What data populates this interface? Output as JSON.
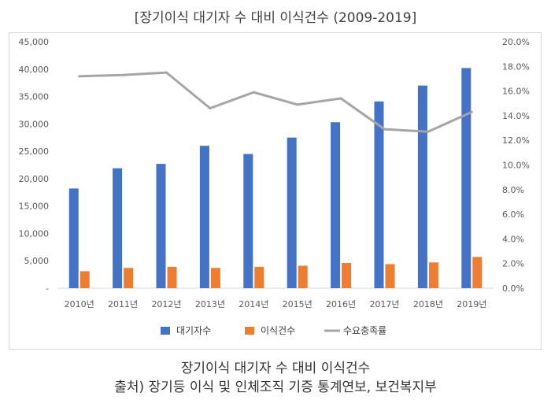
{
  "title": "[장기이식 대기자 수 대비 이식건수 (2009-2019]",
  "caption_line1": "장기이식 대기자 수 대비 이식건수",
  "caption_line2": "출처) 장기등 이식 및 인체조직 기증 통계연보, 보건복지부",
  "chart_data": {
    "type": "bar",
    "categories": [
      "2010년",
      "2011년",
      "2012년",
      "2013년",
      "2014년",
      "2015년",
      "2016년",
      "2017년",
      "2018년",
      "2019년"
    ],
    "series": [
      {
        "name": "대기자수",
        "type": "bar",
        "axis": "left",
        "color": "#4472C4",
        "values": [
          18200,
          21900,
          22700,
          26000,
          24500,
          27500,
          30300,
          34100,
          37000,
          40200
        ]
      },
      {
        "name": "이식건수",
        "type": "bar",
        "axis": "left",
        "color": "#ED7D31",
        "values": [
          3100,
          3700,
          3900,
          3700,
          3900,
          4100,
          4600,
          4400,
          4700,
          5700
        ]
      },
      {
        "name": "수요충족률",
        "type": "line",
        "axis": "right",
        "color": "#A5A5A5",
        "values": [
          17.2,
          17.3,
          17.5,
          14.6,
          15.9,
          14.9,
          15.4,
          12.9,
          12.7,
          14.3
        ]
      }
    ],
    "y_left": {
      "min": 0,
      "max": 45000,
      "step": 5000,
      "tick_labels": [
        "-",
        "5,000",
        "10,000",
        "15,000",
        "20,000",
        "25,000",
        "30,000",
        "35,000",
        "40,000",
        "45,000"
      ]
    },
    "y_right": {
      "min": 0,
      "max": 20,
      "step": 2,
      "tick_labels": [
        "0.0%",
        "2.0%",
        "4.0%",
        "6.0%",
        "8.0%",
        "10.0%",
        "12.0%",
        "14.0%",
        "16.0%",
        "18.0%",
        "20.0%"
      ]
    },
    "grid": false,
    "legend_position": "bottom"
  }
}
